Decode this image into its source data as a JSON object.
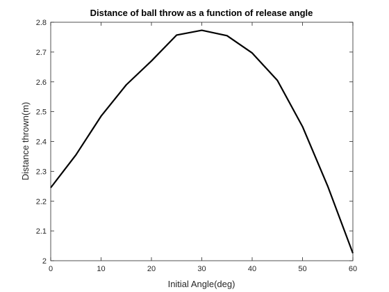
{
  "chart_data": {
    "type": "line",
    "title": "Distance of ball throw as a function of release angle",
    "xlabel": "Initial Angle(deg)",
    "ylabel": "Distance thrown(m)",
    "xlim": [
      0,
      60
    ],
    "ylim": [
      2,
      2.8
    ],
    "xticks": [
      0,
      10,
      20,
      30,
      40,
      50,
      60
    ],
    "yticks": [
      2,
      2.1,
      2.2,
      2.3,
      2.4,
      2.5,
      2.6,
      2.7,
      2.8
    ],
    "xtick_labels": [
      "0",
      "10",
      "20",
      "30",
      "40",
      "50",
      "60"
    ],
    "ytick_labels": [
      "2",
      "2.1",
      "2.2",
      "2.3",
      "2.4",
      "2.5",
      "2.6",
      "2.7",
      "2.8"
    ],
    "grid": false,
    "box": true,
    "series": [
      {
        "color": "#000000",
        "x": [
          0,
          5,
          10,
          15,
          20,
          25,
          30,
          35,
          40,
          45,
          50,
          55,
          60
        ],
        "y": [
          2.245,
          2.355,
          2.485,
          2.59,
          2.67,
          2.757,
          2.773,
          2.755,
          2.697,
          2.605,
          2.45,
          2.25,
          2.025
        ]
      }
    ]
  }
}
